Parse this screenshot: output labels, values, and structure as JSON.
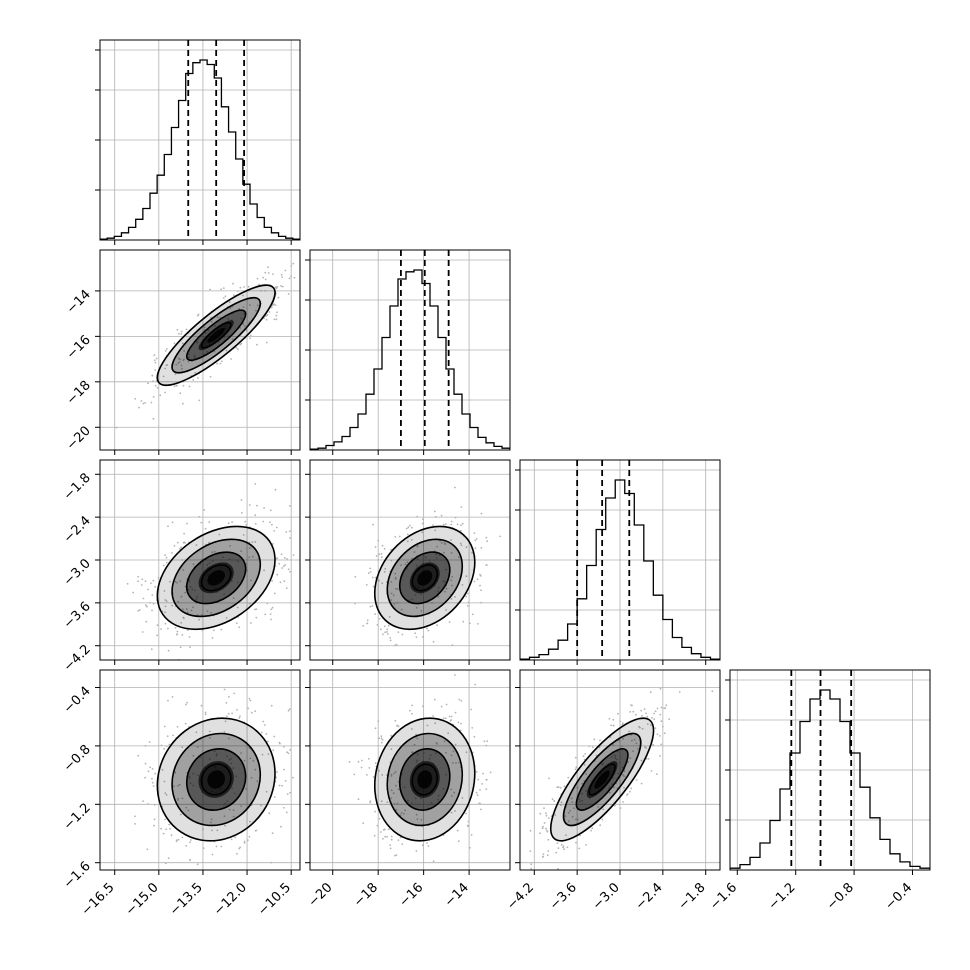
{
  "chart_data": {
    "type": "corner",
    "figure": "corner plot of 4 parameters (1D marginal histograms on the diagonal, 2D density + contours below)",
    "grid": true,
    "colors": {
      "axes": "#000000",
      "grid": "#b0b0b0",
      "points": "#b4b4b4",
      "density": "#000000"
    },
    "parameters": [
      {
        "range": [
          -17.0,
          -10.2
        ],
        "ticks": [
          -16.5,
          -15.0,
          -13.5,
          -12.0,
          -10.5
        ],
        "tick_labels": [
          "−16.5",
          "−15.0",
          "−13.5",
          "−12.0",
          "−10.5"
        ],
        "quantiles": [
          -14.0,
          -13.05,
          -12.1
        ],
        "histogram": [
          1,
          2,
          4,
          8,
          14,
          23,
          35,
          52,
          72,
          95,
          125,
          155,
          185,
          197,
          200,
          195,
          180,
          148,
          120,
          90,
          62,
          40,
          25,
          14,
          8,
          4,
          2,
          1
        ]
      },
      {
        "range": [
          -21.0,
          -12.2
        ],
        "ticks": [
          -20,
          -18,
          -16,
          -14
        ],
        "tick_labels": [
          "−20",
          "−18",
          "−16",
          "−14"
        ],
        "quantiles": [
          -17.0,
          -15.95,
          -14.9
        ],
        "histogram": [
          1,
          2,
          5,
          9,
          15,
          25,
          40,
          62,
          90,
          125,
          160,
          190,
          198,
          200,
          185,
          160,
          125,
          90,
          62,
          40,
          25,
          14,
          8,
          4,
          2
        ]
      },
      {
        "range": [
          -4.4,
          -1.6
        ],
        "ticks": [
          -4.2,
          -3.6,
          -3.0,
          -2.4,
          -1.8
        ],
        "tick_labels": [
          "−4.2",
          "−3.6",
          "−3.0",
          "−2.4",
          "−1.8"
        ],
        "quantiles": [
          -3.6,
          -3.25,
          -2.87
        ],
        "histogram": [
          1,
          3,
          6,
          12,
          22,
          40,
          68,
          105,
          145,
          180,
          200,
          185,
          150,
          110,
          72,
          45,
          25,
          14,
          7,
          3,
          1
        ]
      },
      {
        "range": [
          -1.65,
          -0.28
        ],
        "ticks": [
          -1.6,
          -1.2,
          -0.8,
          -0.4
        ],
        "tick_labels": [
          "−1.6",
          "−1.2",
          "−0.8",
          "−0.4"
        ],
        "quantiles": [
          -1.23,
          -1.03,
          -0.82
        ],
        "histogram": [
          2,
          6,
          14,
          30,
          55,
          90,
          130,
          165,
          190,
          200,
          190,
          165,
          130,
          92,
          58,
          34,
          18,
          9,
          4,
          2
        ]
      }
    ],
    "joint": {
      "means": [
        -13.05,
        -15.95,
        -3.25,
        -1.03
      ],
      "stds": [
        1.0,
        1.1,
        0.36,
        0.21
      ],
      "correlations": [
        [
          1,
          0.85,
          0.35,
          0.1
        ],
        [
          0.85,
          1,
          0.3,
          0.1
        ],
        [
          0.35,
          0.3,
          1,
          0.8
        ],
        [
          0.1,
          0.1,
          0.8,
          1
        ]
      ],
      "contour_levels_sigma": [
        0.5,
        1.0,
        1.5,
        2.0
      ]
    }
  }
}
